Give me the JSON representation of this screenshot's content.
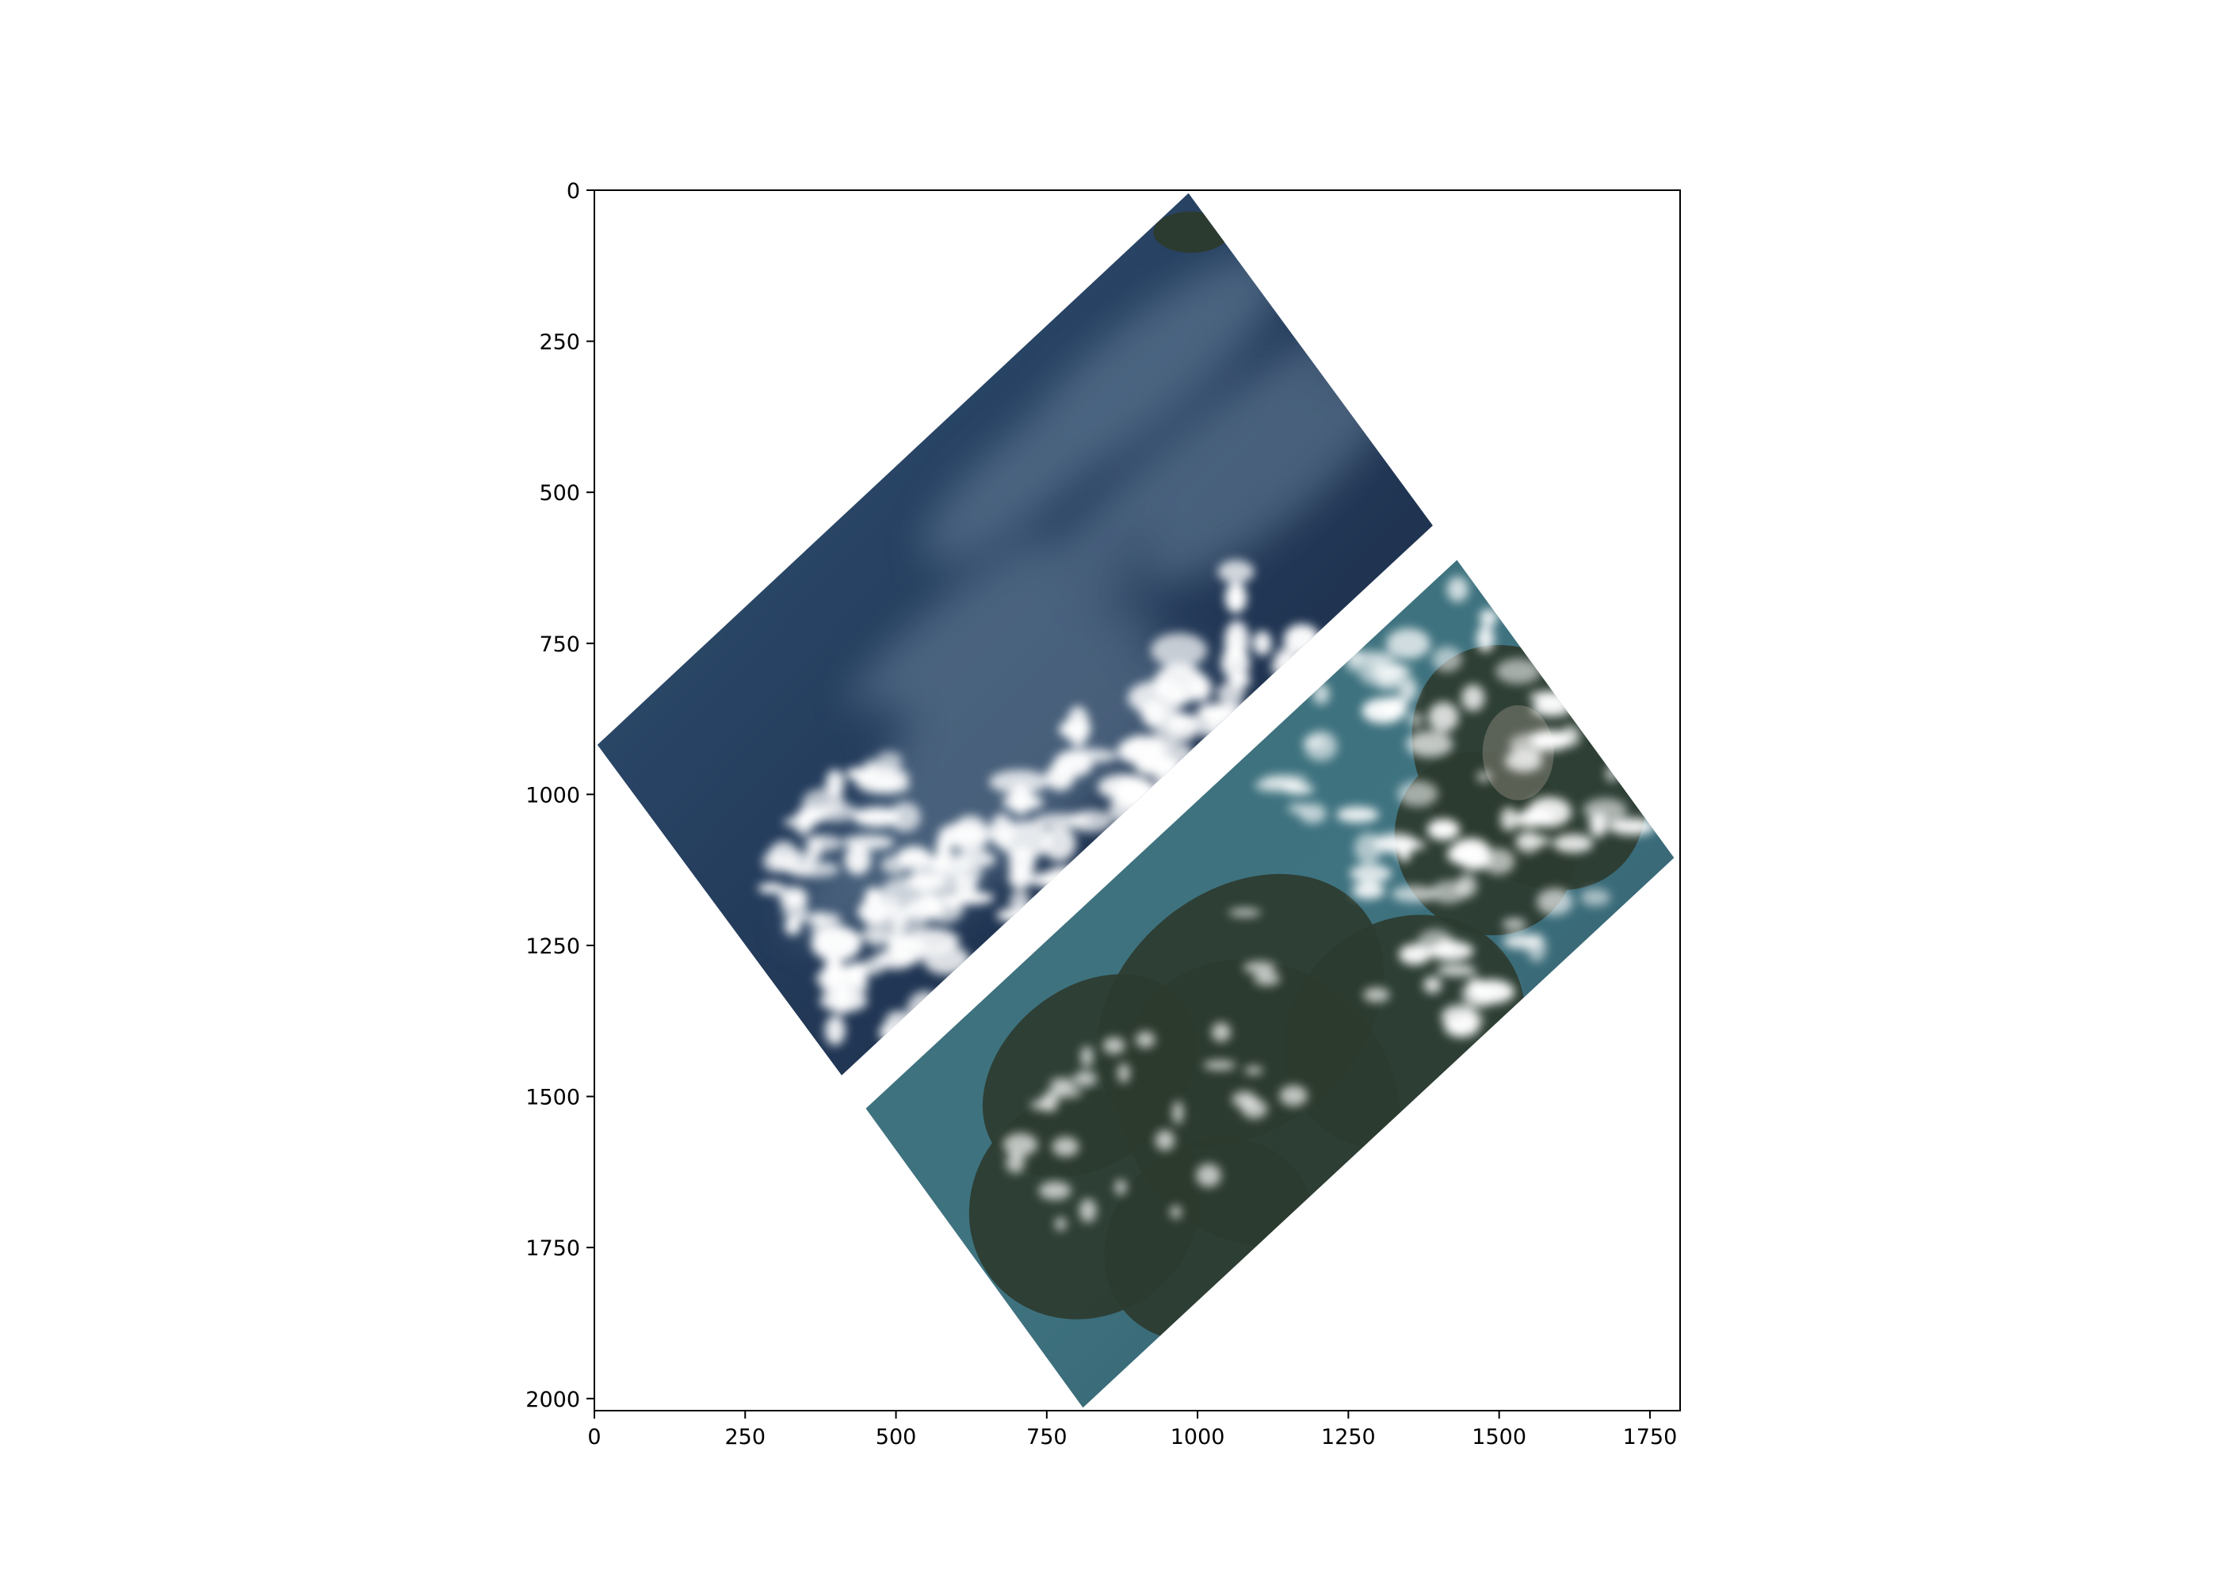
{
  "chart_data": {
    "type": "image",
    "title": "",
    "xlabel": "",
    "ylabel": "",
    "xlim": [
      0,
      1800
    ],
    "ylim": [
      2020,
      0
    ],
    "y_axis_inverted": true,
    "grid": false,
    "legend": "none",
    "x_ticks": [
      {
        "value": 0,
        "label": "0"
      },
      {
        "value": 250,
        "label": "250"
      },
      {
        "value": 500,
        "label": "500"
      },
      {
        "value": 750,
        "label": "750"
      },
      {
        "value": 1000,
        "label": "1000"
      },
      {
        "value": 1250,
        "label": "1250"
      },
      {
        "value": 1500,
        "label": "1500"
      },
      {
        "value": 1750,
        "label": "1750"
      }
    ],
    "y_ticks": [
      {
        "value": 0,
        "label": "0"
      },
      {
        "value": 250,
        "label": "250"
      },
      {
        "value": 500,
        "label": "500"
      },
      {
        "value": 750,
        "label": "750"
      },
      {
        "value": 1000,
        "label": "1000"
      },
      {
        "value": 1250,
        "label": "1250"
      },
      {
        "value": 1500,
        "label": "1500"
      },
      {
        "value": 1750,
        "label": "1750"
      },
      {
        "value": 2000,
        "label": "2000"
      }
    ],
    "image_panels": [
      {
        "name": "upper-swath",
        "content": "ocean-with-clouds",
        "corners": [
          [
            985,
            5
          ],
          [
            1390,
            555
          ],
          [
            410,
            1465
          ],
          [
            5,
            918
          ]
        ]
      },
      {
        "name": "lower-swath",
        "content": "ocean-and-islands",
        "corners": [
          [
            1430,
            612
          ],
          [
            1790,
            1105
          ],
          [
            810,
            2015
          ],
          [
            450,
            1520
          ]
        ]
      }
    ],
    "colors": {
      "deep_ocean": "#1f3350",
      "shallow_water": "#3f6f7c",
      "land": "#2c3b2f",
      "cloud": "#ffffff"
    }
  }
}
